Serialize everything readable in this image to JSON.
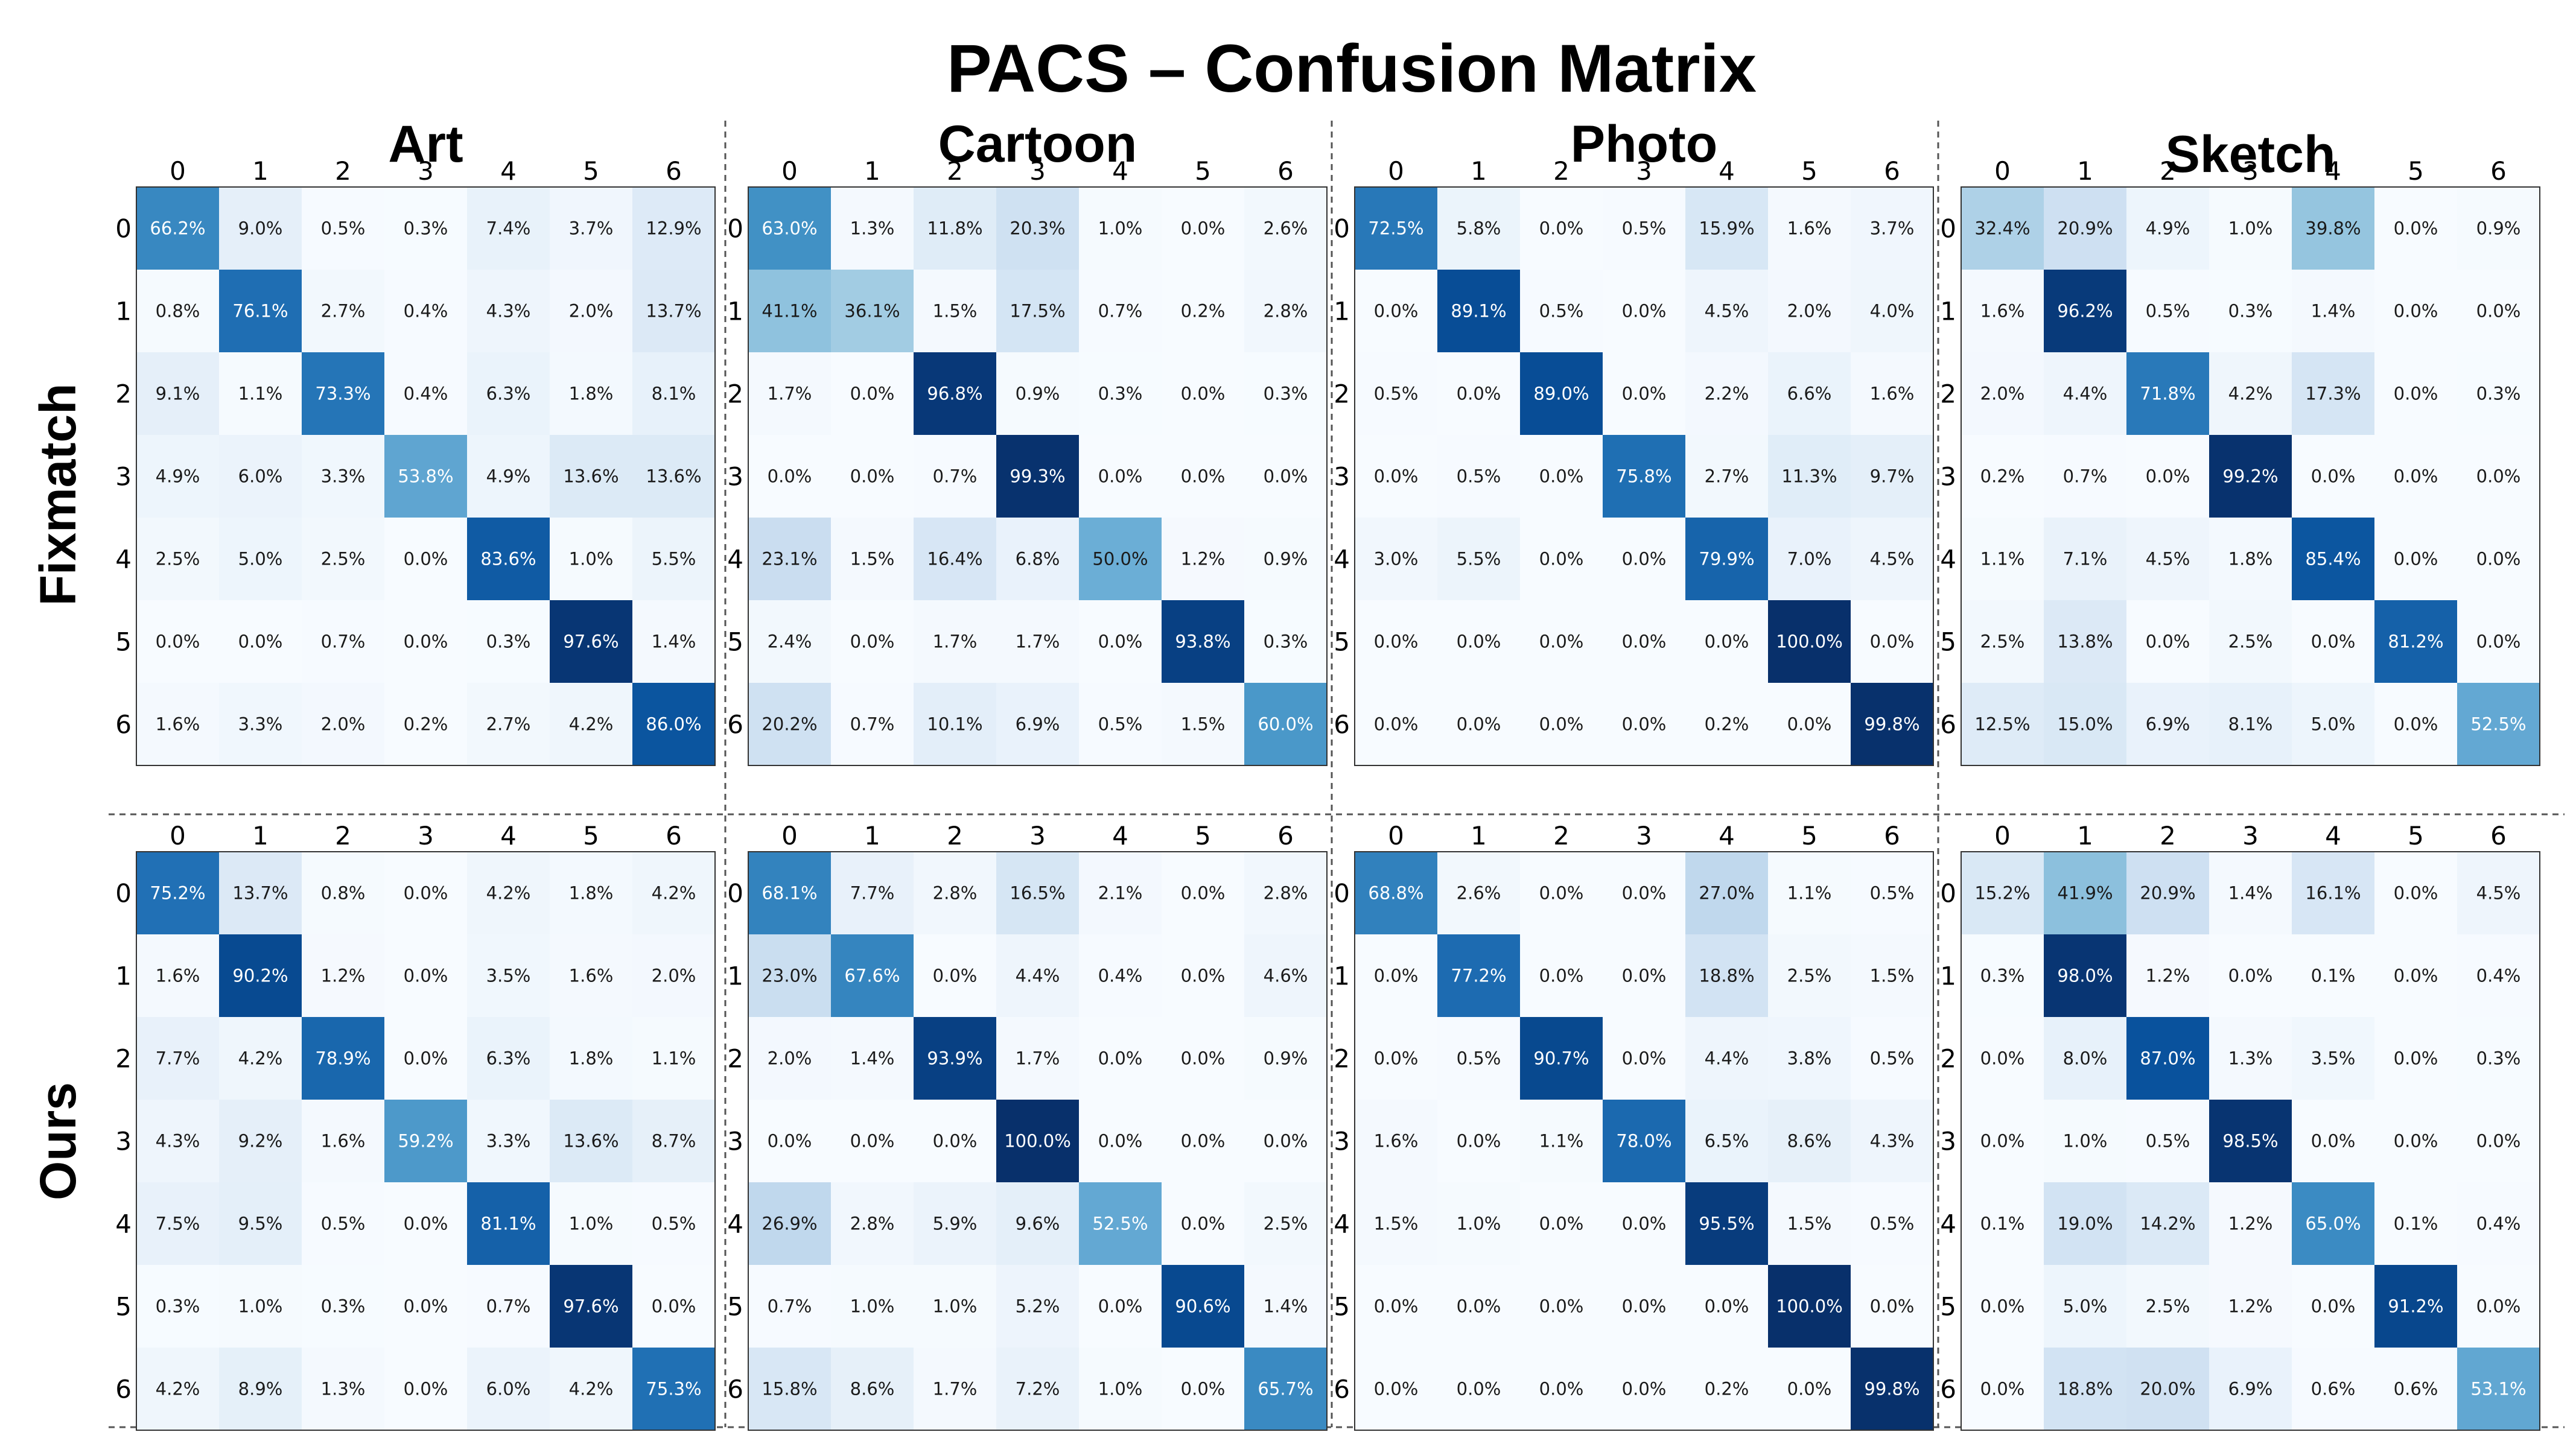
{
  "title": "PACS  –  Confusion Matrix",
  "row_labels": [
    "Fixmatch",
    "Ours"
  ],
  "domains": [
    "Art",
    "Cartoon",
    "Photo",
    "Sketch"
  ],
  "class_labels": [
    "0",
    "1",
    "2",
    "3",
    "4",
    "5",
    "6"
  ],
  "colormap": {
    "name": "Blues",
    "low": "#f7fbff",
    "high": "#08306b"
  },
  "chart_data": [
    {
      "type": "heatmap",
      "method": "Fixmatch",
      "domain": "Art",
      "x": [
        "0",
        "1",
        "2",
        "3",
        "4",
        "5",
        "6"
      ],
      "y": [
        "0",
        "1",
        "2",
        "3",
        "4",
        "5",
        "6"
      ],
      "unit": "%",
      "values": [
        [
          66.2,
          9.0,
          0.5,
          0.3,
          7.4,
          3.7,
          12.9
        ],
        [
          0.8,
          76.1,
          2.7,
          0.4,
          4.3,
          2.0,
          13.7
        ],
        [
          9.1,
          1.1,
          73.3,
          0.4,
          6.3,
          1.8,
          8.1
        ],
        [
          4.9,
          6.0,
          3.3,
          53.8,
          4.9,
          13.6,
          13.6
        ],
        [
          2.5,
          5.0,
          2.5,
          0.0,
          83.6,
          1.0,
          5.5
        ],
        [
          0.0,
          0.0,
          0.7,
          0.0,
          0.3,
          97.6,
          1.4
        ],
        [
          1.6,
          3.3,
          2.0,
          0.2,
          2.7,
          4.2,
          86.0
        ]
      ]
    },
    {
      "type": "heatmap",
      "method": "Fixmatch",
      "domain": "Cartoon",
      "x": [
        "0",
        "1",
        "2",
        "3",
        "4",
        "5",
        "6"
      ],
      "y": [
        "0",
        "1",
        "2",
        "3",
        "4",
        "5",
        "6"
      ],
      "unit": "%",
      "values": [
        [
          63.0,
          1.3,
          11.8,
          20.3,
          1.0,
          0.0,
          2.6
        ],
        [
          41.1,
          36.1,
          1.5,
          17.5,
          0.7,
          0.2,
          2.8
        ],
        [
          1.7,
          0.0,
          96.8,
          0.9,
          0.3,
          0.0,
          0.3
        ],
        [
          0.0,
          0.0,
          0.7,
          99.3,
          0.0,
          0.0,
          0.0
        ],
        [
          23.1,
          1.5,
          16.4,
          6.8,
          50.0,
          1.2,
          0.9
        ],
        [
          2.4,
          0.0,
          1.7,
          1.7,
          0.0,
          93.8,
          0.3
        ],
        [
          20.2,
          0.7,
          10.1,
          6.9,
          0.5,
          1.5,
          60.0
        ]
      ]
    },
    {
      "type": "heatmap",
      "method": "Fixmatch",
      "domain": "Photo",
      "x": [
        "0",
        "1",
        "2",
        "3",
        "4",
        "5",
        "6"
      ],
      "y": [
        "0",
        "1",
        "2",
        "3",
        "4",
        "5",
        "6"
      ],
      "unit": "%",
      "values": [
        [
          72.5,
          5.8,
          0.0,
          0.5,
          15.9,
          1.6,
          3.7
        ],
        [
          0.0,
          89.1,
          0.5,
          0.0,
          4.5,
          2.0,
          4.0
        ],
        [
          0.5,
          0.0,
          89.0,
          0.0,
          2.2,
          6.6,
          1.6
        ],
        [
          0.0,
          0.5,
          0.0,
          75.8,
          2.7,
          11.3,
          9.7
        ],
        [
          3.0,
          5.5,
          0.0,
          0.0,
          79.9,
          7.0,
          4.5
        ],
        [
          0.0,
          0.0,
          0.0,
          0.0,
          0.0,
          100.0,
          0.0
        ],
        [
          0.0,
          0.0,
          0.0,
          0.0,
          0.2,
          0.0,
          99.8
        ]
      ]
    },
    {
      "type": "heatmap",
      "method": "Fixmatch",
      "domain": "Sketch",
      "x": [
        "0",
        "1",
        "2",
        "3",
        "4",
        "5",
        "6"
      ],
      "y": [
        "0",
        "1",
        "2",
        "3",
        "4",
        "5",
        "6"
      ],
      "unit": "%",
      "values": [
        [
          32.4,
          20.9,
          4.9,
          1.0,
          39.8,
          0.0,
          0.9
        ],
        [
          1.6,
          96.2,
          0.5,
          0.3,
          1.4,
          0.0,
          0.0
        ],
        [
          2.0,
          4.4,
          71.8,
          4.2,
          17.3,
          0.0,
          0.3
        ],
        [
          0.2,
          0.7,
          0.0,
          99.2,
          0.0,
          0.0,
          0.0
        ],
        [
          1.1,
          7.1,
          4.5,
          1.8,
          85.4,
          0.0,
          0.0
        ],
        [
          2.5,
          13.8,
          0.0,
          2.5,
          0.0,
          81.2,
          0.0
        ],
        [
          12.5,
          15.0,
          6.9,
          8.1,
          5.0,
          0.0,
          52.5
        ]
      ]
    },
    {
      "type": "heatmap",
      "method": "Ours",
      "domain": "Art",
      "x": [
        "0",
        "1",
        "2",
        "3",
        "4",
        "5",
        "6"
      ],
      "y": [
        "0",
        "1",
        "2",
        "3",
        "4",
        "5",
        "6"
      ],
      "unit": "%",
      "values": [
        [
          75.2,
          13.7,
          0.8,
          0.0,
          4.2,
          1.8,
          4.2
        ],
        [
          1.6,
          90.2,
          1.2,
          0.0,
          3.5,
          1.6,
          2.0
        ],
        [
          7.7,
          4.2,
          78.9,
          0.0,
          6.3,
          1.8,
          1.1
        ],
        [
          4.3,
          9.2,
          1.6,
          59.2,
          3.3,
          13.6,
          8.7
        ],
        [
          7.5,
          9.5,
          0.5,
          0.0,
          81.1,
          1.0,
          0.5
        ],
        [
          0.3,
          1.0,
          0.3,
          0.0,
          0.7,
          97.6,
          0.0
        ],
        [
          4.2,
          8.9,
          1.3,
          0.0,
          6.0,
          4.2,
          75.3
        ]
      ]
    },
    {
      "type": "heatmap",
      "method": "Ours",
      "domain": "Cartoon",
      "x": [
        "0",
        "1",
        "2",
        "3",
        "4",
        "5",
        "6"
      ],
      "y": [
        "0",
        "1",
        "2",
        "3",
        "4",
        "5",
        "6"
      ],
      "unit": "%",
      "values": [
        [
          68.1,
          7.7,
          2.8,
          16.5,
          2.1,
          0.0,
          2.8
        ],
        [
          23.0,
          67.6,
          0.0,
          4.4,
          0.4,
          0.0,
          4.6
        ],
        [
          2.0,
          1.4,
          93.9,
          1.7,
          0.0,
          0.0,
          0.9
        ],
        [
          0.0,
          0.0,
          0.0,
          100.0,
          0.0,
          0.0,
          0.0
        ],
        [
          26.9,
          2.8,
          5.9,
          9.6,
          52.5,
          0.0,
          2.5
        ],
        [
          0.7,
          1.0,
          1.0,
          5.2,
          0.0,
          90.6,
          1.4
        ],
        [
          15.8,
          8.6,
          1.7,
          7.2,
          1.0,
          0.0,
          65.7
        ]
      ]
    },
    {
      "type": "heatmap",
      "method": "Ours",
      "domain": "Photo",
      "x": [
        "0",
        "1",
        "2",
        "3",
        "4",
        "5",
        "6"
      ],
      "y": [
        "0",
        "1",
        "2",
        "3",
        "4",
        "5",
        "6"
      ],
      "unit": "%",
      "values": [
        [
          68.8,
          2.6,
          0.0,
          0.0,
          27.0,
          1.1,
          0.5
        ],
        [
          0.0,
          77.2,
          0.0,
          0.0,
          18.8,
          2.5,
          1.5
        ],
        [
          0.0,
          0.5,
          90.7,
          0.0,
          4.4,
          3.8,
          0.5
        ],
        [
          1.6,
          0.0,
          1.1,
          78.0,
          6.5,
          8.6,
          4.3
        ],
        [
          1.5,
          1.0,
          0.0,
          0.0,
          95.5,
          1.5,
          0.5
        ],
        [
          0.0,
          0.0,
          0.0,
          0.0,
          0.0,
          100.0,
          0.0
        ],
        [
          0.0,
          0.0,
          0.0,
          0.0,
          0.2,
          0.0,
          99.8
        ]
      ]
    },
    {
      "type": "heatmap",
      "method": "Ours",
      "domain": "Sketch",
      "x": [
        "0",
        "1",
        "2",
        "3",
        "4",
        "5",
        "6"
      ],
      "y": [
        "0",
        "1",
        "2",
        "3",
        "4",
        "5",
        "6"
      ],
      "unit": "%",
      "values": [
        [
          15.2,
          41.9,
          20.9,
          1.4,
          16.1,
          0.0,
          4.5
        ],
        [
          0.3,
          98.0,
          1.2,
          0.0,
          0.1,
          0.0,
          0.4
        ],
        [
          0.0,
          8.0,
          87.0,
          1.3,
          3.5,
          0.0,
          0.3
        ],
        [
          0.0,
          1.0,
          0.5,
          98.5,
          0.0,
          0.0,
          0.0
        ],
        [
          0.1,
          19.0,
          14.2,
          1.2,
          65.0,
          0.1,
          0.4
        ],
        [
          0.0,
          5.0,
          2.5,
          1.2,
          0.0,
          91.2,
          0.0
        ],
        [
          0.0,
          18.8,
          20.0,
          6.9,
          0.6,
          0.6,
          53.1
        ]
      ]
    }
  ]
}
